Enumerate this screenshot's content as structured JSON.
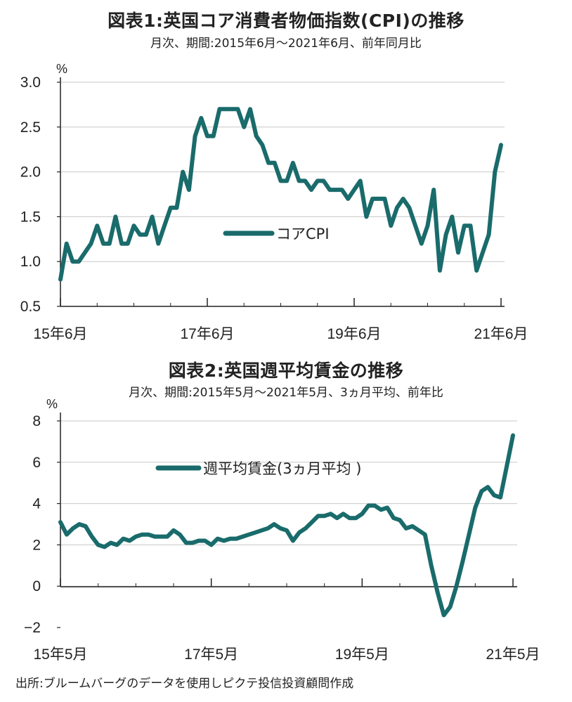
{
  "chart_data": [
    {
      "type": "line",
      "title": "図表1:英国コア消費者物価指数(CPI)の推移",
      "subtitle": "月次、期間:2015年6月〜2021年6月、前年同月比",
      "unit": "%",
      "x_tick_labels": [
        "15年6月",
        "17年6月",
        "19年6月",
        "21年6月"
      ],
      "y_tick_labels": [
        "3.0",
        "2.5",
        "2.0",
        "1.5",
        "1.0",
        "0.5"
      ],
      "ylim": [
        0.5,
        3.0
      ],
      "grid": "horizontal",
      "legend_position": "center",
      "series": [
        {
          "name": "コアCPI",
          "color": "#1a6b6b",
          "x_start": "2015-06",
          "values": [
            0.8,
            1.2,
            1.0,
            1.0,
            1.1,
            1.2,
            1.4,
            1.2,
            1.2,
            1.5,
            1.2,
            1.2,
            1.4,
            1.3,
            1.3,
            1.5,
            1.2,
            1.4,
            1.6,
            1.6,
            2.0,
            1.8,
            2.4,
            2.6,
            2.4,
            2.4,
            2.7,
            2.7,
            2.7,
            2.7,
            2.5,
            2.7,
            2.4,
            2.3,
            2.1,
            2.1,
            1.9,
            1.9,
            2.1,
            1.9,
            1.9,
            1.8,
            1.9,
            1.9,
            1.8,
            1.8,
            1.8,
            1.7,
            1.8,
            1.9,
            1.5,
            1.7,
            1.7,
            1.7,
            1.4,
            1.6,
            1.7,
            1.6,
            1.4,
            1.2,
            1.4,
            1.8,
            0.9,
            1.3,
            1.5,
            1.1,
            1.4,
            1.4,
            0.9,
            1.1,
            1.3,
            2.0,
            2.3
          ]
        }
      ]
    },
    {
      "type": "line",
      "title": "図表2:英国週平均賃金の推移",
      "subtitle": "月次、期間:2015年5月〜2021年5月、3ヵ月平均、前年比",
      "unit": "%",
      "x_tick_labels": [
        "15年5月",
        "17年5月",
        "19年5月",
        "21年5月"
      ],
      "y_tick_labels": [
        "8",
        "6",
        "4",
        "2",
        "0",
        "-2"
      ],
      "ylim": [
        -2,
        8
      ],
      "grid": "horizontal",
      "legend_position": "top-center",
      "series": [
        {
          "name": "週平均賃金(3ヵ月平均 )",
          "color": "#1a6b6b",
          "x_start": "2015-05",
          "values": [
            3.1,
            2.5,
            2.8,
            3.0,
            2.9,
            2.4,
            2.0,
            1.9,
            2.1,
            2.0,
            2.3,
            2.2,
            2.4,
            2.5,
            2.5,
            2.4,
            2.4,
            2.4,
            2.7,
            2.5,
            2.1,
            2.1,
            2.2,
            2.2,
            2.0,
            2.3,
            2.2,
            2.3,
            2.3,
            2.4,
            2.5,
            2.6,
            2.7,
            2.8,
            3.0,
            2.8,
            2.7,
            2.2,
            2.6,
            2.8,
            3.1,
            3.4,
            3.4,
            3.5,
            3.3,
            3.5,
            3.3,
            3.3,
            3.5,
            3.9,
            3.9,
            3.7,
            3.8,
            3.3,
            3.2,
            2.8,
            2.9,
            2.7,
            2.5,
            1.0,
            -0.3,
            -1.4,
            -1.0,
            0.0,
            1.2,
            2.5,
            3.8,
            4.6,
            4.8,
            4.4,
            4.3,
            5.8,
            7.3
          ]
        }
      ]
    }
  ],
  "source": "出所:ブルームバーグのデータを使用しピクテ投信投資顧問作成"
}
